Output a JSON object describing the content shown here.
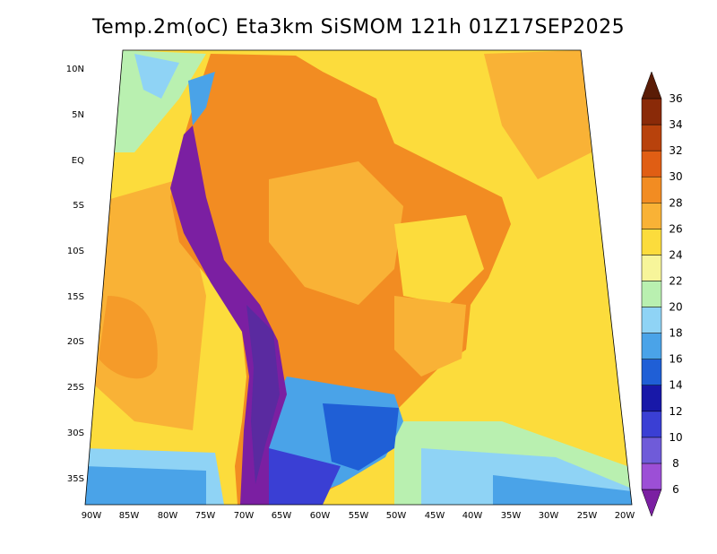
{
  "title": "Temp.2m(oC) Eta3km SiSMOM 121h 01Z17SEP2025",
  "lat_labels": [
    "10N",
    "5N",
    "EQ",
    "5S",
    "10S",
    "15S",
    "20S",
    "25S",
    "30S",
    "35S"
  ],
  "lon_labels": [
    "90W",
    "85W",
    "80W",
    "75W",
    "70W",
    "65W",
    "60W",
    "55W",
    "50W",
    "45W",
    "40W",
    "35W",
    "30W",
    "25W",
    "20W"
  ],
  "colorbar": {
    "levels": [
      6,
      8,
      10,
      12,
      14,
      16,
      18,
      20,
      22,
      24,
      26,
      28,
      30,
      32,
      34,
      36
    ],
    "labels": [
      "6",
      "8",
      "10",
      "12",
      "14",
      "16",
      "18",
      "20",
      "22",
      "24",
      "26",
      "28",
      "30",
      "32",
      "34",
      "36"
    ],
    "colors": [
      "#7b1fa2",
      "#9c4fd6",
      "#6f5bd9",
      "#3a3fd4",
      "#1818a8",
      "#1f5fd6",
      "#4aa3e8",
      "#8fd3f5",
      "#b9f0b0",
      "#f7f59a",
      "#fcdc3c",
      "#f9b236",
      "#f28c22",
      "#e05e14",
      "#b8420c",
      "#8a2a08",
      "#5a1c06"
    ]
  },
  "legend_colors": {
    "ocean_warm": "#fcdc3c",
    "ocean_orange": "#f9b236",
    "land_hot": "#f28c22",
    "andes": "#3a1a90"
  }
}
